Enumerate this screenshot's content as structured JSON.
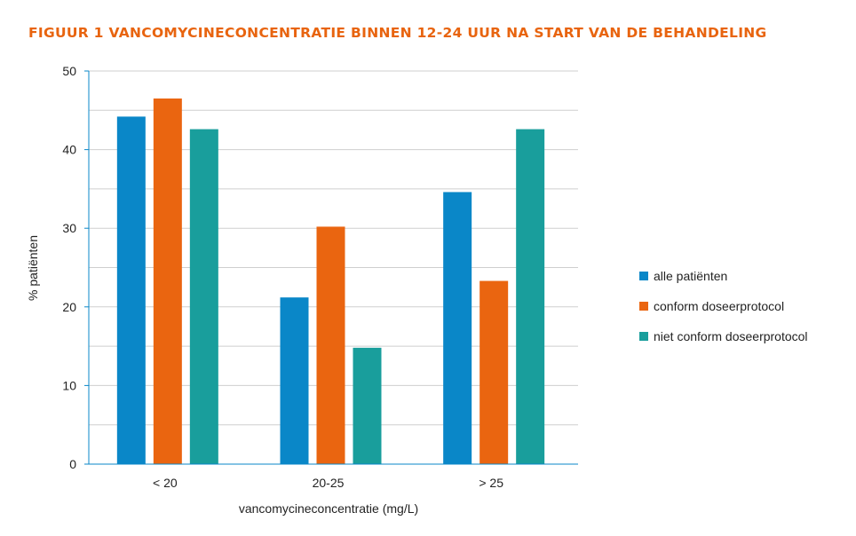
{
  "chart_data": {
    "type": "bar",
    "title": "FIGUUR 1 VANCOMYCINECONCENTRATIE BINNEN 12-24 UUR NA START VAN DE BEHANDELING",
    "xlabel": "vancomycineconcentratie (mg/L)",
    "ylabel": "% patiënten",
    "ylim": [
      0,
      50
    ],
    "yticks": [
      0,
      10,
      20,
      30,
      40,
      50
    ],
    "grid": true,
    "legend_position": "right",
    "categories": [
      "< 20",
      "20-25",
      "> 25"
    ],
    "series": [
      {
        "name": "alle patiënten",
        "color": "#0a87c8",
        "values": [
          44.2,
          21.2,
          34.6
        ]
      },
      {
        "name": "conform doseerprotocol",
        "color": "#ea6510",
        "values": [
          46.5,
          30.2,
          23.3
        ]
      },
      {
        "name": "niet conform doseerprotocol",
        "color": "#199e9c",
        "values": [
          42.6,
          14.8,
          42.6
        ]
      }
    ]
  }
}
